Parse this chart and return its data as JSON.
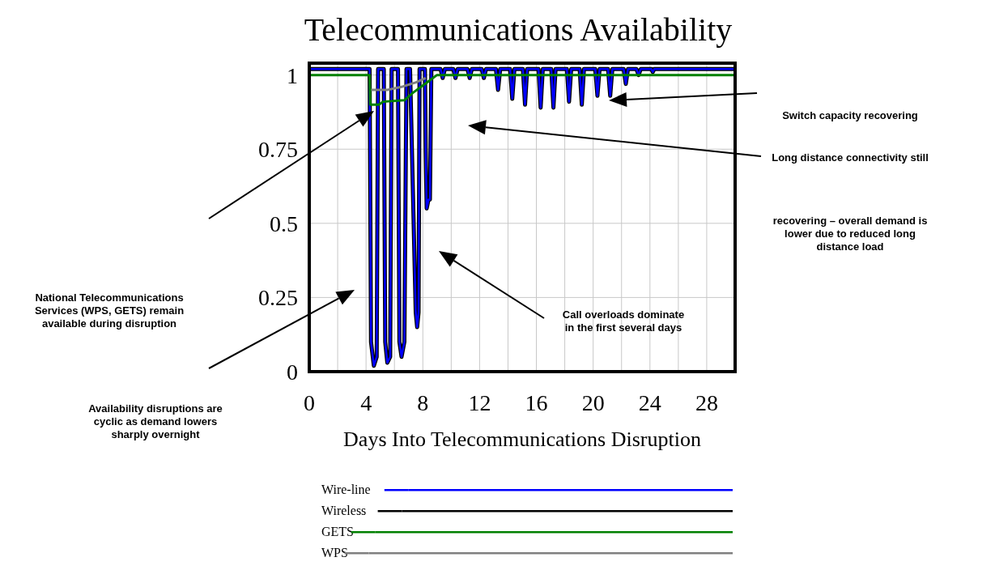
{
  "chart_data": {
    "type": "line",
    "title": "Telecommunications Availability",
    "xlabel": "Days Into Telecommunications Disruption",
    "xlim": [
      0,
      30
    ],
    "xticks": [
      0,
      4,
      8,
      12,
      16,
      20,
      24,
      28
    ],
    "ylim": [
      0,
      1.04
    ],
    "yticks": [
      0,
      0.25,
      0.5,
      0.75,
      1
    ],
    "grid": true,
    "legend": "bottom",
    "marker": "none",
    "line_style": "solid",
    "series": [
      {
        "name": "Wireless",
        "color": "#000000",
        "x": [
          0,
          4.25,
          4.35,
          4.55,
          4.75,
          4.85,
          5.25,
          5.35,
          5.5,
          5.7,
          5.8,
          6.25,
          6.35,
          6.5,
          6.7,
          6.85,
          7.1,
          7.5,
          7.6,
          7.7,
          7.77,
          8.15,
          8.2,
          8.27,
          8.4,
          8.5,
          8.6,
          9.25,
          9.4,
          9.55,
          10.15,
          10.3,
          10.45,
          11.15,
          11.3,
          11.45,
          12.15,
          12.3,
          12.45,
          13.15,
          13.3,
          13.45,
          14.15,
          14.3,
          14.45,
          15.05,
          15.2,
          15.35,
          16.15,
          16.3,
          16.45,
          17.05,
          17.2,
          17.35,
          18.15,
          18.3,
          18.45,
          19.05,
          19.2,
          19.35,
          20.15,
          20.3,
          20.45,
          21.05,
          21.2,
          21.35,
          22.15,
          22.3,
          22.45,
          23.05,
          23.2,
          23.35,
          24.1,
          24.2,
          24.3,
          30
        ],
        "values": [
          1.02,
          1.02,
          0.1,
          0.02,
          0.05,
          1.02,
          1.02,
          0.1,
          0.03,
          0.05,
          1.02,
          1.02,
          0.1,
          0.05,
          0.1,
          1.02,
          1.02,
          0.2,
          0.15,
          0.2,
          1.02,
          1.02,
          0.75,
          0.55,
          0.58,
          0.58,
          1.02,
          1.02,
          0.99,
          1.02,
          1.02,
          0.99,
          1.02,
          1.02,
          0.99,
          1.02,
          1.02,
          0.99,
          1.02,
          1.02,
          0.95,
          1.02,
          1.02,
          0.92,
          1.02,
          1.02,
          0.9,
          1.02,
          1.02,
          0.89,
          1.02,
          1.02,
          0.89,
          1.02,
          1.02,
          0.91,
          1.02,
          1.02,
          0.9,
          1.02,
          1.02,
          0.93,
          1.02,
          1.02,
          0.93,
          1.02,
          1.02,
          0.97,
          1.02,
          1.02,
          1.0,
          1.02,
          1.02,
          1.01,
          1.02,
          1.02
        ]
      },
      {
        "name": "Wire-line",
        "color": "#0000ff",
        "x": [
          0,
          4.25,
          4.35,
          4.55,
          4.75,
          4.85,
          5.25,
          5.35,
          5.5,
          5.7,
          5.8,
          6.25,
          6.35,
          6.5,
          6.7,
          6.85,
          7.1,
          7.5,
          7.6,
          7.7,
          7.77,
          8.15,
          8.2,
          8.27,
          8.4,
          8.5,
          8.6,
          9.25,
          9.4,
          9.55,
          10.15,
          10.3,
          10.45,
          11.15,
          11.3,
          11.45,
          12.15,
          12.3,
          12.45,
          13.15,
          13.3,
          13.45,
          14.15,
          14.3,
          14.45,
          15.05,
          15.2,
          15.35,
          16.15,
          16.3,
          16.45,
          17.05,
          17.2,
          17.35,
          18.15,
          18.3,
          18.45,
          19.05,
          19.2,
          19.35,
          20.15,
          20.3,
          20.45,
          21.05,
          21.2,
          21.35,
          22.15,
          22.3,
          22.45,
          23.05,
          23.2,
          23.35,
          24.1,
          24.2,
          24.3,
          30
        ],
        "values": [
          1.02,
          1.02,
          0.1,
          0.02,
          0.05,
          1.02,
          1.02,
          0.1,
          0.03,
          0.05,
          1.02,
          1.02,
          0.1,
          0.05,
          0.1,
          1.02,
          1.02,
          0.2,
          0.15,
          0.2,
          1.02,
          1.02,
          0.75,
          0.55,
          0.58,
          0.58,
          1.02,
          1.02,
          0.99,
          1.02,
          1.02,
          0.99,
          1.02,
          1.02,
          0.99,
          1.02,
          1.02,
          0.99,
          1.02,
          1.02,
          0.95,
          1.02,
          1.02,
          0.92,
          1.02,
          1.02,
          0.9,
          1.02,
          1.02,
          0.89,
          1.02,
          1.02,
          0.89,
          1.02,
          1.02,
          0.91,
          1.02,
          1.02,
          0.9,
          1.02,
          1.02,
          0.93,
          1.02,
          1.02,
          0.93,
          1.02,
          1.02,
          0.97,
          1.02,
          1.02,
          1.0,
          1.02,
          1.02,
          1.01,
          1.02,
          1.02
        ]
      },
      {
        "name": "WPS",
        "color": "#808080",
        "x": [
          4.3,
          5.5,
          6.5,
          7.5,
          8.2
        ],
        "values": [
          0.95,
          0.95,
          0.96,
          0.975,
          0.99
        ]
      },
      {
        "name": "GETS",
        "color": "#008000",
        "x": [
          0,
          4.25,
          4.3,
          4.9,
          5.2,
          6.7,
          7.3,
          8.3,
          9.0,
          30
        ],
        "values": [
          1,
          1,
          0.9,
          0.9,
          0.91,
          0.915,
          0.94,
          0.975,
          1,
          1
        ]
      }
    ],
    "annotations": [
      "Switch capacity recovering",
      "Long distance connectivity still\nrecovering – overall demand is\nlower due to reduced long\ndistance load",
      "National Telecommunications\nServices (WPS, GETS) remain\navailable during disruption",
      "Call overloads dominate\nin the first several days",
      "Availability disruptions are\ncyclic as demand lowers\nsharply overnight"
    ]
  }
}
